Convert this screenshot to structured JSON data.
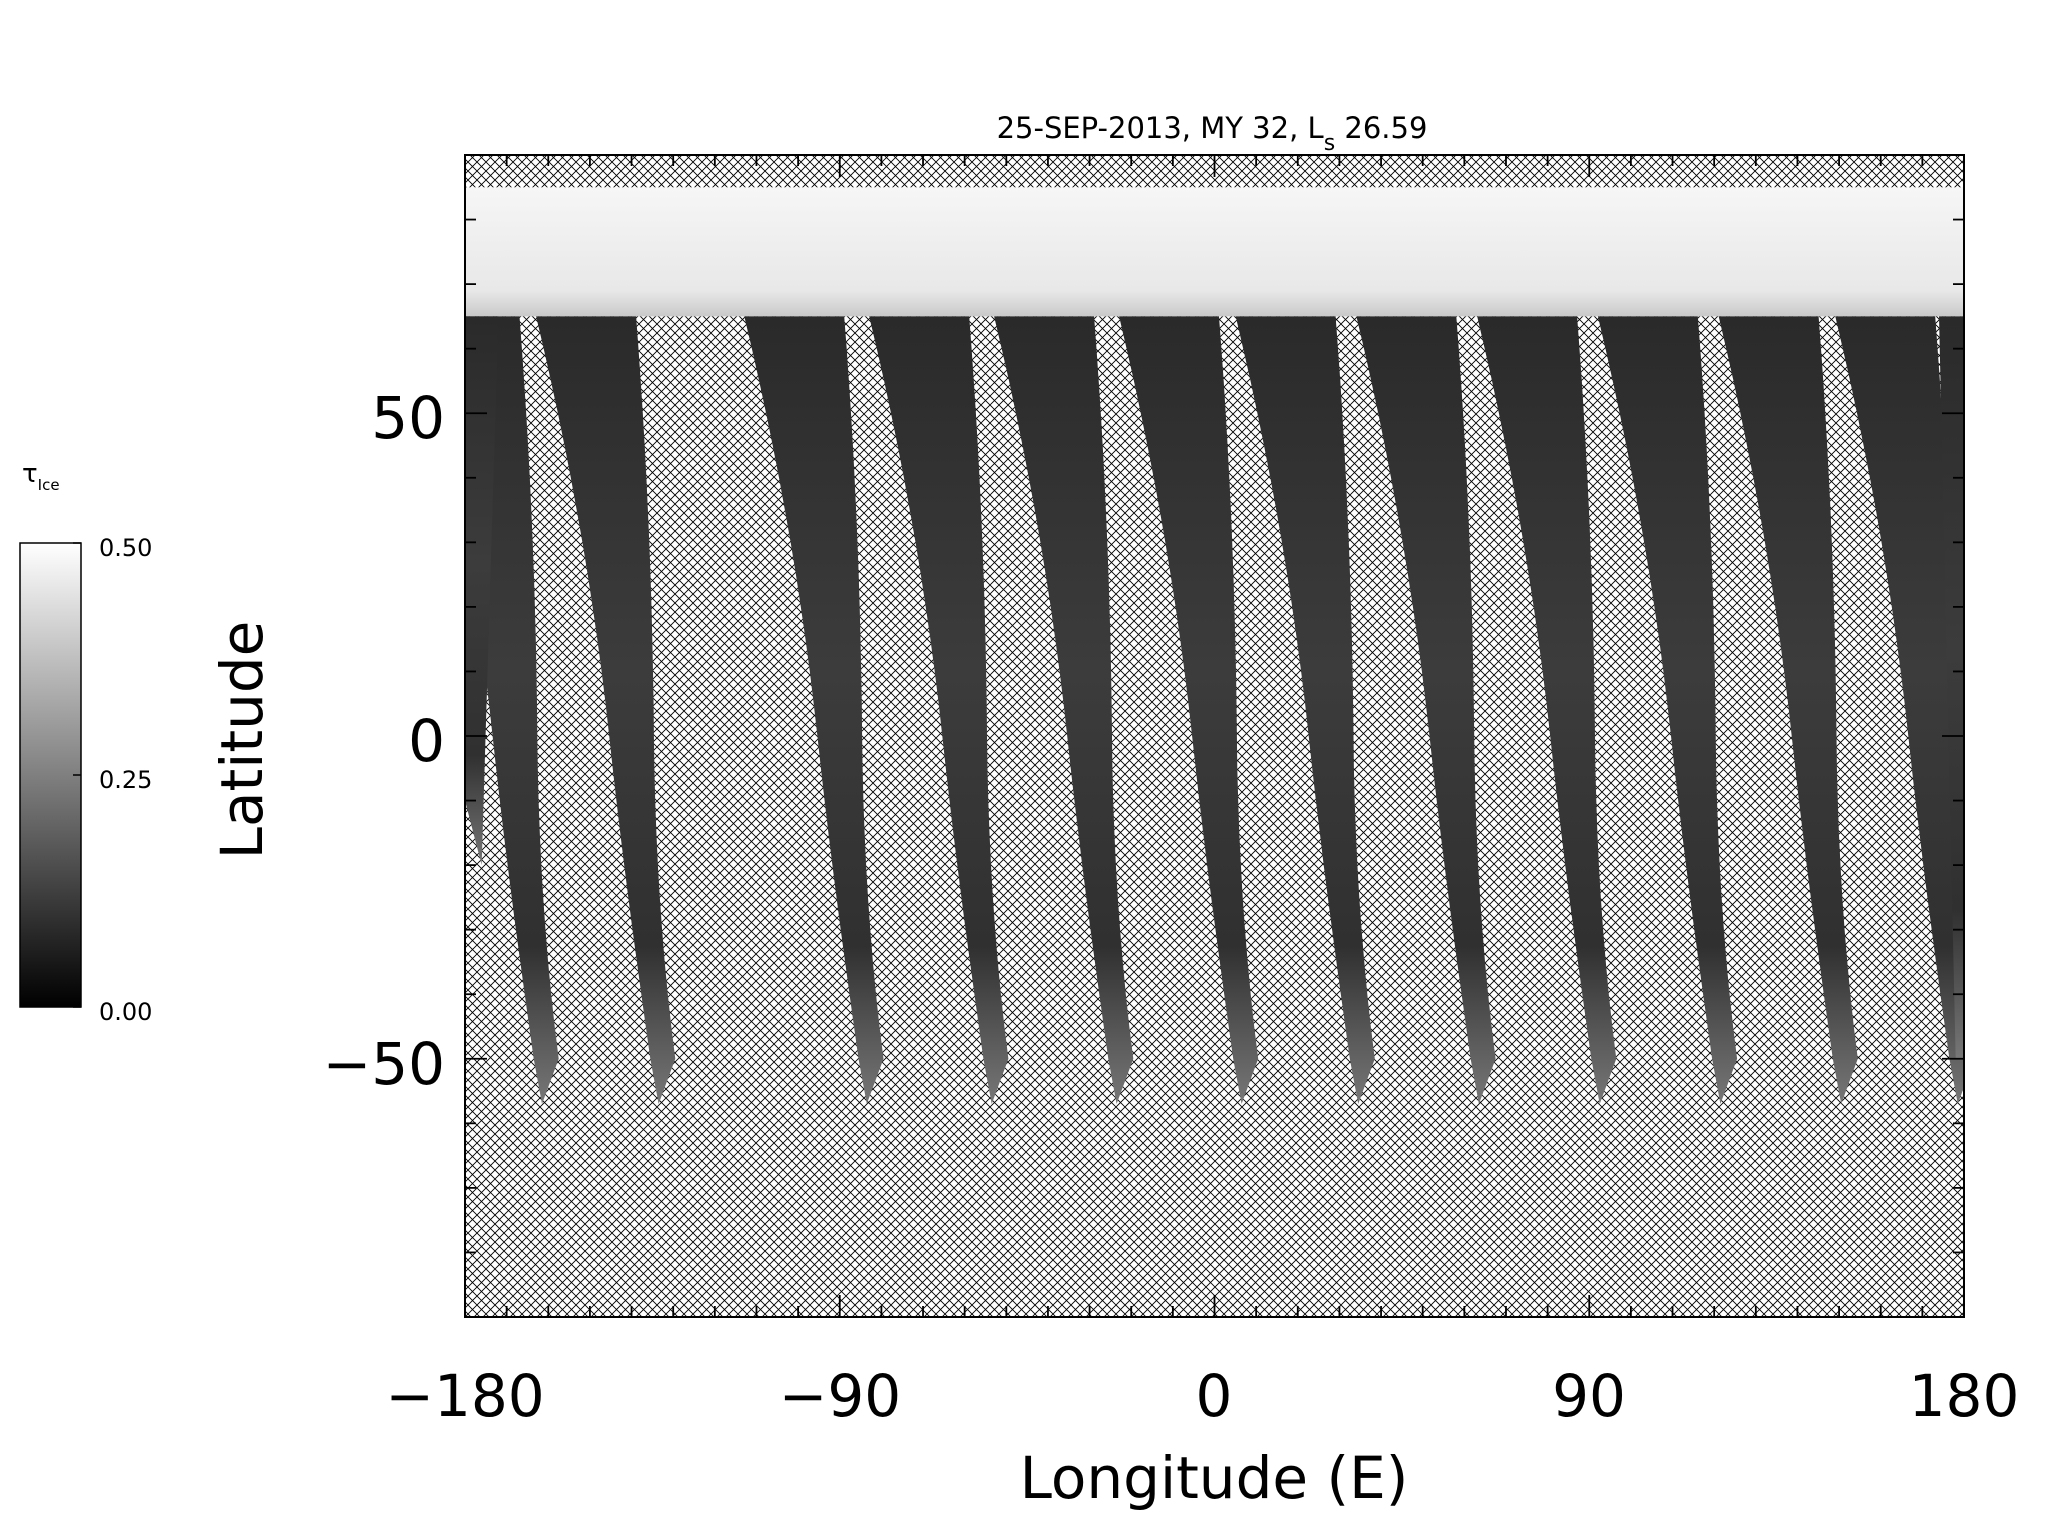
{
  "figure": {
    "title_main": "25-SEP-2013, MY 32,  L",
    "title_sub": "s",
    "title_value": " 26.59",
    "xlabel": "Longitude (E)",
    "ylabel": "Latitude",
    "xlim": [
      -180,
      180
    ],
    "ylim": [
      -90,
      90
    ],
    "xticks": [
      -180,
      -90,
      0,
      90,
      180
    ],
    "xtick_labels": [
      "−180",
      "−90",
      "0",
      "90",
      "180"
    ],
    "yticks": [
      -50,
      0,
      50
    ],
    "ytick_labels": [
      "−50",
      "0",
      "50"
    ],
    "x_minor_step": 10,
    "y_minor_step": 10,
    "no_data_fill": "crosshatch"
  },
  "colorbar": {
    "label_symbol": "τ",
    "label_sub": "Ice",
    "vmin": 0.0,
    "vmax": 0.5,
    "ticks": [
      {
        "value": 0.5,
        "label": "0.50"
      },
      {
        "value": 0.25,
        "label": "0.25"
      },
      {
        "value": 0.0,
        "label": "0.00"
      }
    ],
    "colormap": "grayscale",
    "color_low": "#000000",
    "color_high": "#ffffff"
  },
  "map_data": {
    "quantity": "water ice optical depth",
    "north_cap_lat_bottom": 65,
    "north_cap_lat_top": 85,
    "north_cap_opacity": 0.5,
    "swath_count": 13,
    "swath_south_tip_lat": -57,
    "swath_north_lat": 65,
    "swath_center_lon_at_equator": [
      -168,
      -140,
      -90,
      -60,
      -30,
      0,
      28,
      57,
      86,
      115,
      144,
      172,
      177
    ],
    "equatorial_opacity_typical": 0.08,
    "midlat_north_opacity_typical": 0.05,
    "southern_tip_opacity_typical": 0.2
  }
}
